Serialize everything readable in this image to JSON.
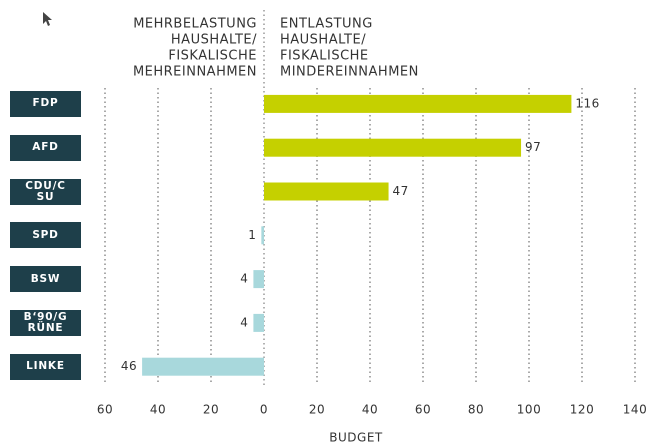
{
  "chart_data": {
    "type": "bar",
    "orientation": "horizontal",
    "annotations": [
      [
        "MEHRBELASTUNG",
        "HAUSHALTE/",
        "FISKALISCHE",
        "MEHREINNAHMEN"
      ],
      [
        "ENTLASTUNG",
        "HAUSHALTE/",
        "FISKALISCHE",
        "MINDEREINNAHMEN"
      ]
    ],
    "categories": [
      "FDP",
      "AFD",
      "CDU/CSU",
      "SPD",
      "BSW",
      "B‘90/GRÜNE",
      "LINKE"
    ],
    "values": [
      116,
      97,
      47,
      -1,
      -4,
      -4,
      -46
    ],
    "value_labels": [
      "116",
      "97",
      "47",
      "1",
      "4",
      "4",
      "46"
    ],
    "colors": [
      "#c5d000",
      "#c5d000",
      "#c5d000",
      "#a8d8dc",
      "#a8d8dc",
      "#a8d8dc",
      "#a8d8dc"
    ],
    "xlabel": "BUDGET",
    "xlim": [
      -60,
      140
    ],
    "xticks": [
      {
        "value": -60,
        "label": "60"
      },
      {
        "value": -40,
        "label": "40"
      },
      {
        "value": -20,
        "label": "20"
      },
      0,
      20,
      40,
      60,
      80,
      100,
      120,
      140
    ],
    "grid": true
  }
}
